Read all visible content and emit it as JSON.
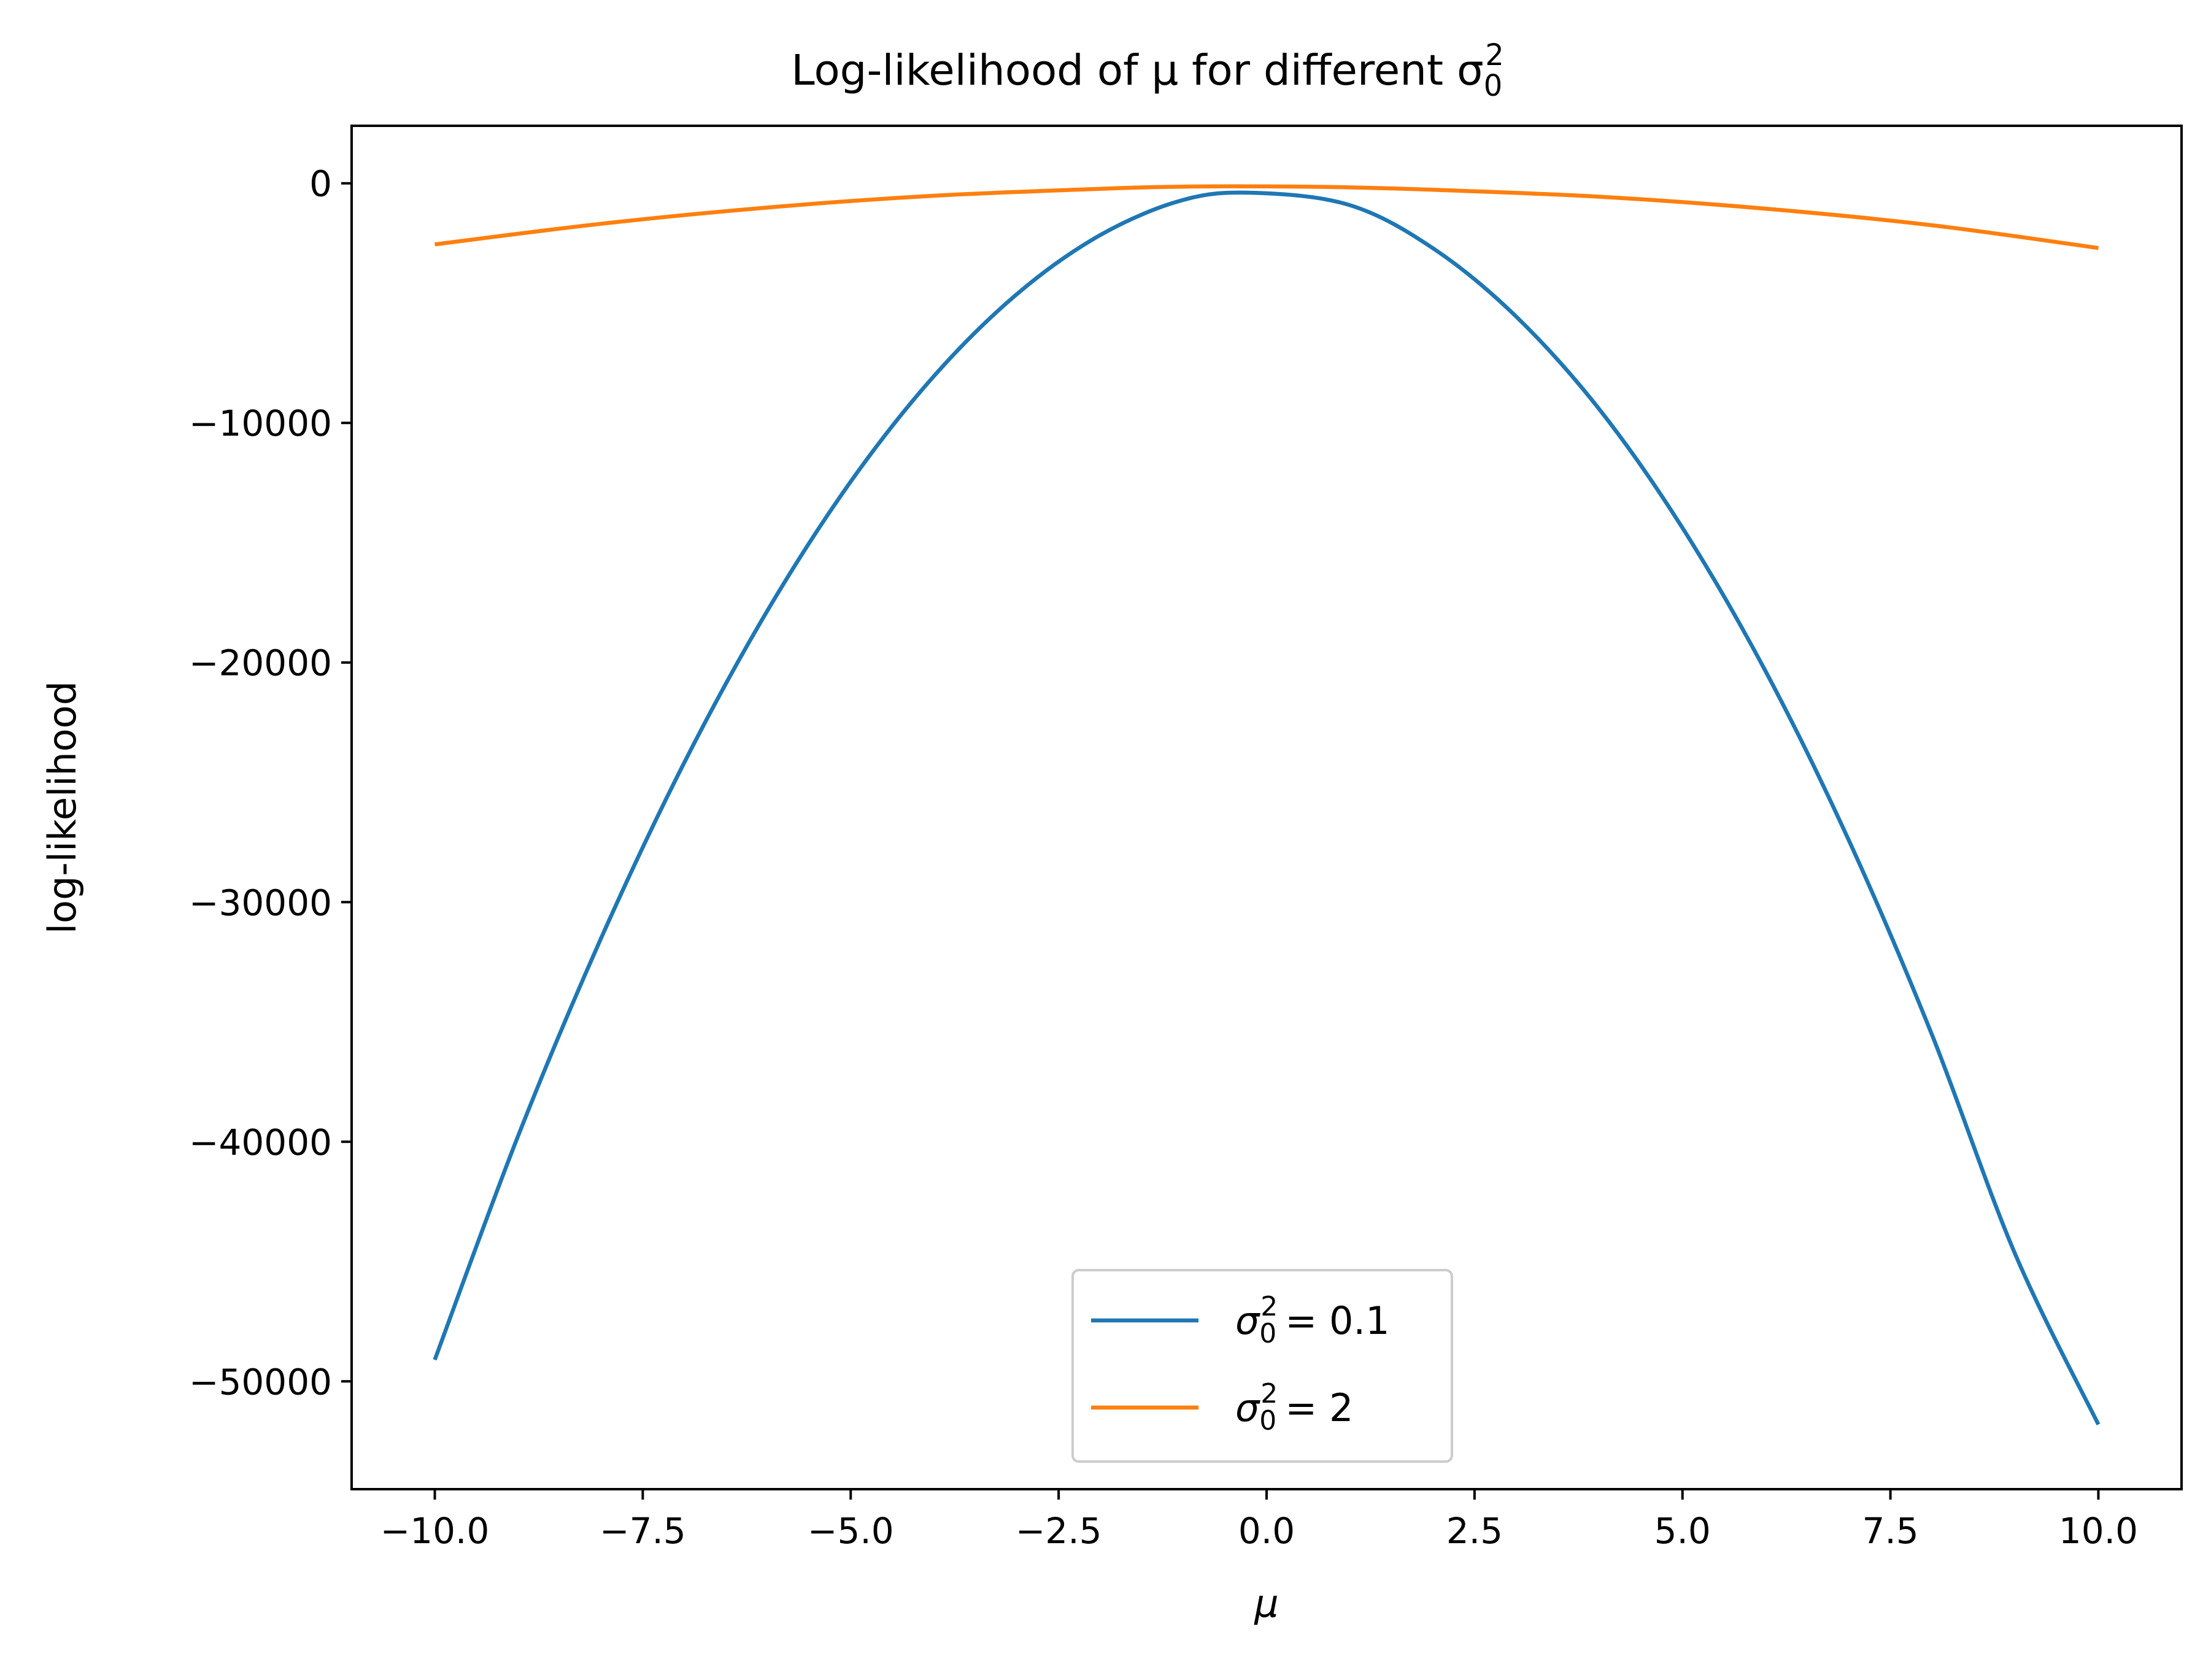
{
  "chart_data": {
    "type": "line",
    "title": {
      "text": "Log-likelihood of μ for different σ",
      "symbol": "σ",
      "sub": "0",
      "sup": "2"
    },
    "xlabel": "μ",
    "ylabel": "log-likelihood",
    "xlim": [
      -11,
      11
    ],
    "ylim": [
      -54500,
      2400
    ],
    "xticks": [
      -10,
      -7.5,
      -5,
      -2.5,
      0,
      2.5,
      5,
      7.5,
      10
    ],
    "xtick_labels": [
      "−10.0",
      "−7.5",
      "−5.0",
      "−2.5",
      "0.0",
      "2.5",
      "5.0",
      "7.5",
      "10.0"
    ],
    "yticks": [
      0,
      -10000,
      -20000,
      -30000,
      -40000,
      -50000
    ],
    "ytick_labels": [
      "0",
      "−10000",
      "−20000",
      "−30000",
      "−40000",
      "−50000"
    ],
    "grid": false,
    "legend_position": "lower center",
    "series": [
      {
        "name": "σ₀² = 0.1",
        "legend": {
          "symbol": "σ",
          "sub": "0",
          "sup": "2",
          "eq": "= 0.1"
        },
        "color": "#1f77b4",
        "x": [
          -10,
          -9,
          -8,
          -7,
          -6,
          -5,
          -4,
          -3,
          -2,
          -1,
          -0.15,
          1,
          2,
          3,
          4,
          5,
          6,
          7,
          8,
          9,
          10
        ],
        "y": [
          -49100,
          -39770,
          -31500,
          -24170,
          -17830,
          -12450,
          -8050,
          -4620,
          -2160,
          -690,
          -400,
          -910,
          -2710,
          -5560,
          -9430,
          -14380,
          -20370,
          -27420,
          -35540,
          -44690,
          -51800
        ]
      },
      {
        "name": "σ₀² = 2",
        "legend": {
          "symbol": "σ",
          "sub": "0",
          "sup": "2",
          "eq": "= 2"
        },
        "color": "#ff7f0e",
        "x": [
          -10,
          -8,
          -6,
          -4,
          -2,
          -1,
          0,
          1,
          2,
          4,
          6,
          8,
          10
        ],
        "y": [
          -2550,
          -1690,
          -1010,
          -520,
          -230,
          -140,
          -130,
          -170,
          -270,
          -560,
          -1060,
          -1750,
          -2700
        ]
      }
    ]
  }
}
